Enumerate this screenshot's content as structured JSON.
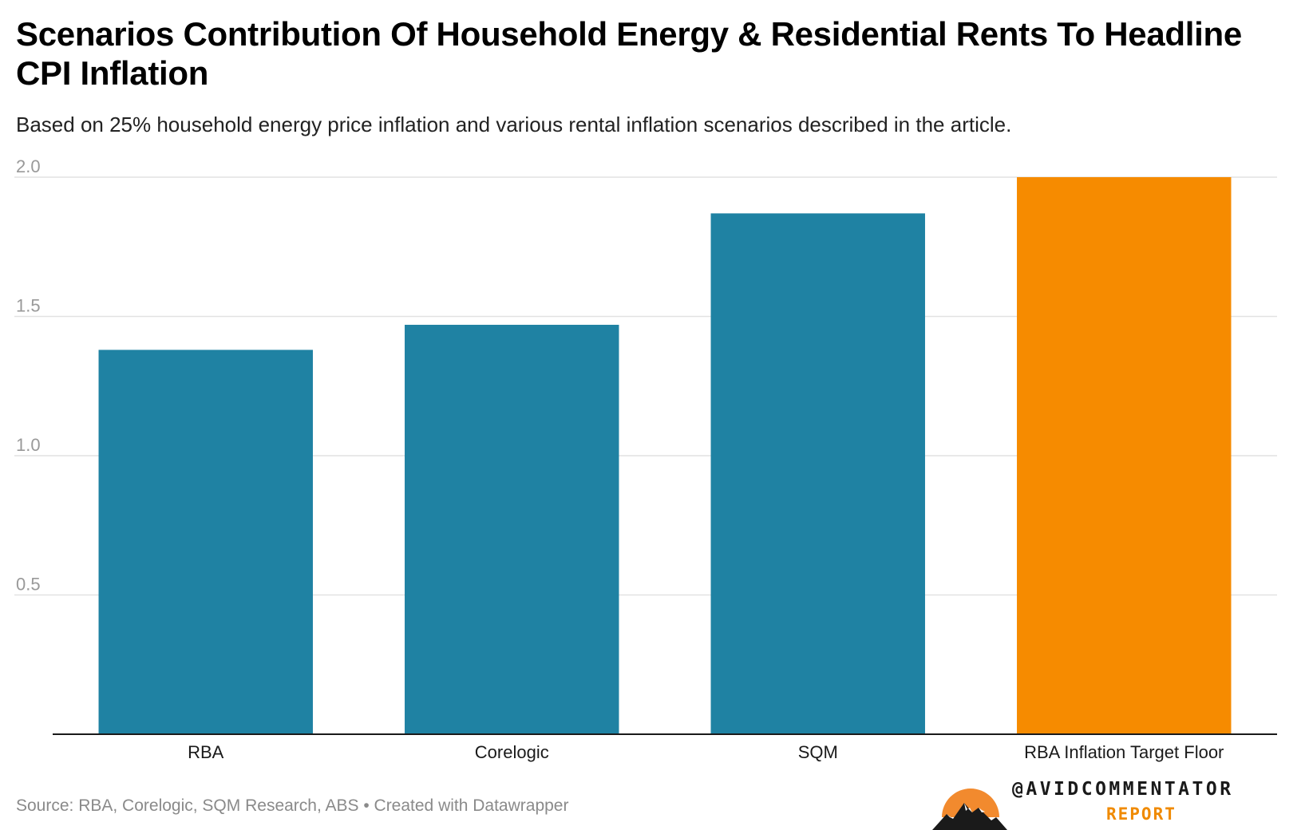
{
  "header": {
    "title": "Scenarios Contribution Of Household Energy & Residential Rents To Headline CPI Inflation",
    "subtitle": "Based on 25% household energy price inflation and various rental inflation scenarios described in the article."
  },
  "chart_data": {
    "type": "bar",
    "title": "Scenarios Contribution Of Household Energy & Residential Rents To Headline CPI Inflation",
    "subtitle": "Based on 25% household energy price inflation and various rental inflation scenarios described in the article.",
    "categories": [
      "RBA",
      "Corelogic",
      "SQM",
      "RBA Inflation Target Floor"
    ],
    "values": [
      1.38,
      1.47,
      1.87,
      2.0
    ],
    "colors": [
      "#1f82a3",
      "#1f82a3",
      "#1f82a3",
      "#f68b00"
    ],
    "xlabel": "",
    "ylabel": "",
    "ylim": [
      0,
      2.0
    ],
    "yticks": [
      0.5,
      1.0,
      1.5,
      2.0
    ],
    "ytick_labels": [
      "0.5",
      "1.0",
      "1.5",
      "2.0"
    ],
    "grid": true,
    "legend": "none"
  },
  "footer": {
    "source": "Source: RBA, Corelogic, SQM Research, ABS • Created with Datawrapper"
  },
  "brand": {
    "handle": "@AVIDCOMMENTATOR",
    "report": "REPORT",
    "sun_color": "#f28a2e",
    "accent_color": "#f08a00",
    "logo_icon": "mountain-sun-logo-icon"
  }
}
